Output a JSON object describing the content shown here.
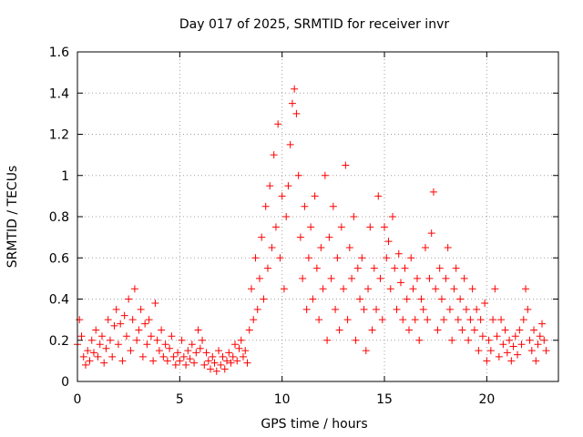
{
  "chart_data": {
    "type": "scatter",
    "title": "Day 017 of 2025, SRMTID for receiver invr",
    "xlabel": "GPS time / hours",
    "ylabel": "SRMTID / TECUs",
    "xlim": [
      0,
      23.5
    ],
    "ylim": [
      0,
      1.6
    ],
    "xticks": [
      0,
      5,
      10,
      15,
      20
    ],
    "xtick_labels": [
      "0",
      "5",
      "10",
      "15",
      "20"
    ],
    "yticks": [
      0,
      0.2,
      0.4,
      0.6,
      0.8,
      1.0,
      1.2,
      1.4,
      1.6
    ],
    "ytick_labels": [
      "0",
      "0.2",
      "0.4",
      "0.6",
      "0.8",
      "1",
      "1.2",
      "1.4",
      "1.6"
    ],
    "grid": true,
    "marker": "plus",
    "color": "#ff0000",
    "series": [
      {
        "name": "SRMTID",
        "points": [
          [
            0.0,
            0.18
          ],
          [
            0.1,
            0.3
          ],
          [
            0.2,
            0.22
          ],
          [
            0.3,
            0.12
          ],
          [
            0.4,
            0.08
          ],
          [
            0.5,
            0.15
          ],
          [
            0.6,
            0.1
          ],
          [
            0.7,
            0.2
          ],
          [
            0.8,
            0.14
          ],
          [
            0.9,
            0.25
          ],
          [
            1.0,
            0.12
          ],
          [
            1.1,
            0.18
          ],
          [
            1.2,
            0.22
          ],
          [
            1.3,
            0.09
          ],
          [
            1.4,
            0.16
          ],
          [
            1.5,
            0.3
          ],
          [
            1.6,
            0.2
          ],
          [
            1.7,
            0.12
          ],
          [
            1.8,
            0.27
          ],
          [
            1.9,
            0.35
          ],
          [
            2.0,
            0.18
          ],
          [
            2.1,
            0.28
          ],
          [
            2.2,
            0.1
          ],
          [
            2.3,
            0.32
          ],
          [
            2.4,
            0.22
          ],
          [
            2.5,
            0.4
          ],
          [
            2.6,
            0.15
          ],
          [
            2.7,
            0.3
          ],
          [
            2.8,
            0.45
          ],
          [
            2.9,
            0.2
          ],
          [
            3.0,
            0.25
          ],
          [
            3.1,
            0.35
          ],
          [
            3.2,
            0.12
          ],
          [
            3.3,
            0.28
          ],
          [
            3.4,
            0.18
          ],
          [
            3.5,
            0.3
          ],
          [
            3.6,
            0.22
          ],
          [
            3.7,
            0.1
          ],
          [
            3.8,
            0.38
          ],
          [
            3.9,
            0.2
          ],
          [
            4.0,
            0.15
          ],
          [
            4.1,
            0.25
          ],
          [
            4.2,
            0.12
          ],
          [
            4.3,
            0.18
          ],
          [
            4.4,
            0.1
          ],
          [
            4.5,
            0.16
          ],
          [
            4.6,
            0.22
          ],
          [
            4.7,
            0.12
          ],
          [
            4.8,
            0.08
          ],
          [
            4.9,
            0.14
          ],
          [
            5.0,
            0.1
          ],
          [
            5.1,
            0.2
          ],
          [
            5.2,
            0.12
          ],
          [
            5.3,
            0.08
          ],
          [
            5.4,
            0.15
          ],
          [
            5.5,
            0.11
          ],
          [
            5.6,
            0.18
          ],
          [
            5.7,
            0.09
          ],
          [
            5.8,
            0.14
          ],
          [
            5.9,
            0.25
          ],
          [
            6.0,
            0.16
          ],
          [
            6.1,
            0.2
          ],
          [
            6.2,
            0.08
          ],
          [
            6.3,
            0.14
          ],
          [
            6.4,
            0.1
          ],
          [
            6.5,
            0.06
          ],
          [
            6.6,
            0.12
          ],
          [
            6.7,
            0.09
          ],
          [
            6.8,
            0.05
          ],
          [
            6.9,
            0.15
          ],
          [
            7.0,
            0.08
          ],
          [
            7.1,
            0.12
          ],
          [
            7.2,
            0.06
          ],
          [
            7.3,
            0.1
          ],
          [
            7.4,
            0.14
          ],
          [
            7.5,
            0.09
          ],
          [
            7.6,
            0.12
          ],
          [
            7.7,
            0.18
          ],
          [
            7.8,
            0.1
          ],
          [
            7.9,
            0.16
          ],
          [
            8.0,
            0.2
          ],
          [
            8.1,
            0.12
          ],
          [
            8.2,
            0.15
          ],
          [
            8.3,
            0.09
          ],
          [
            8.4,
            0.25
          ],
          [
            8.5,
            0.45
          ],
          [
            8.6,
            0.3
          ],
          [
            8.7,
            0.6
          ],
          [
            8.8,
            0.35
          ],
          [
            8.9,
            0.5
          ],
          [
            9.0,
            0.7
          ],
          [
            9.1,
            0.4
          ],
          [
            9.2,
            0.85
          ],
          [
            9.3,
            0.55
          ],
          [
            9.4,
            0.95
          ],
          [
            9.5,
            0.65
          ],
          [
            9.6,
            1.1
          ],
          [
            9.7,
            0.75
          ],
          [
            9.8,
            1.25
          ],
          [
            9.9,
            0.6
          ],
          [
            10.0,
            0.9
          ],
          [
            10.1,
            0.45
          ],
          [
            10.2,
            0.8
          ],
          [
            10.3,
            0.95
          ],
          [
            10.4,
            1.15
          ],
          [
            10.5,
            1.35
          ],
          [
            10.6,
            1.42
          ],
          [
            10.7,
            1.3
          ],
          [
            10.8,
            1.0
          ],
          [
            10.9,
            0.7
          ],
          [
            11.0,
            0.5
          ],
          [
            11.1,
            0.85
          ],
          [
            11.2,
            0.35
          ],
          [
            11.3,
            0.6
          ],
          [
            11.4,
            0.75
          ],
          [
            11.5,
            0.4
          ],
          [
            11.6,
            0.9
          ],
          [
            11.7,
            0.55
          ],
          [
            11.8,
            0.3
          ],
          [
            11.9,
            0.65
          ],
          [
            12.0,
            0.45
          ],
          [
            12.1,
            1.0
          ],
          [
            12.2,
            0.2
          ],
          [
            12.3,
            0.7
          ],
          [
            12.4,
            0.5
          ],
          [
            12.5,
            0.85
          ],
          [
            12.6,
            0.35
          ],
          [
            12.7,
            0.6
          ],
          [
            12.8,
            0.25
          ],
          [
            12.9,
            0.75
          ],
          [
            13.0,
            0.45
          ],
          [
            13.1,
            1.05
          ],
          [
            13.2,
            0.3
          ],
          [
            13.3,
            0.65
          ],
          [
            13.4,
            0.5
          ],
          [
            13.5,
            0.8
          ],
          [
            13.6,
            0.2
          ],
          [
            13.7,
            0.55
          ],
          [
            13.8,
            0.4
          ],
          [
            13.9,
            0.6
          ],
          [
            14.0,
            0.35
          ],
          [
            14.1,
            0.15
          ],
          [
            14.2,
            0.45
          ],
          [
            14.3,
            0.75
          ],
          [
            14.4,
            0.25
          ],
          [
            14.5,
            0.55
          ],
          [
            14.6,
            0.35
          ],
          [
            14.7,
            0.9
          ],
          [
            14.8,
            0.5
          ],
          [
            14.9,
            0.3
          ],
          [
            15.0,
            0.75
          ],
          [
            15.1,
            0.6
          ],
          [
            15.2,
            0.68
          ],
          [
            15.3,
            0.45
          ],
          [
            15.4,
            0.8
          ],
          [
            15.5,
            0.55
          ],
          [
            15.6,
            0.35
          ],
          [
            15.7,
            0.62
          ],
          [
            15.8,
            0.48
          ],
          [
            15.9,
            0.3
          ],
          [
            16.0,
            0.55
          ],
          [
            16.1,
            0.4
          ],
          [
            16.2,
            0.25
          ],
          [
            16.3,
            0.6
          ],
          [
            16.4,
            0.45
          ],
          [
            16.5,
            0.3
          ],
          [
            16.6,
            0.5
          ],
          [
            16.7,
            0.2
          ],
          [
            16.8,
            0.4
          ],
          [
            16.9,
            0.35
          ],
          [
            17.0,
            0.65
          ],
          [
            17.1,
            0.3
          ],
          [
            17.2,
            0.5
          ],
          [
            17.3,
            0.72
          ],
          [
            17.4,
            0.92
          ],
          [
            17.5,
            0.45
          ],
          [
            17.6,
            0.25
          ],
          [
            17.7,
            0.55
          ],
          [
            17.8,
            0.4
          ],
          [
            17.9,
            0.3
          ],
          [
            18.0,
            0.5
          ],
          [
            18.1,
            0.65
          ],
          [
            18.2,
            0.35
          ],
          [
            18.3,
            0.2
          ],
          [
            18.4,
            0.45
          ],
          [
            18.5,
            0.55
          ],
          [
            18.6,
            0.3
          ],
          [
            18.7,
            0.4
          ],
          [
            18.8,
            0.25
          ],
          [
            18.9,
            0.5
          ],
          [
            19.0,
            0.35
          ],
          [
            19.1,
            0.2
          ],
          [
            19.2,
            0.3
          ],
          [
            19.3,
            0.45
          ],
          [
            19.4,
            0.25
          ],
          [
            19.5,
            0.35
          ],
          [
            19.6,
            0.15
          ],
          [
            19.7,
            0.3
          ],
          [
            19.8,
            0.22
          ],
          [
            19.9,
            0.38
          ],
          [
            20.0,
            0.1
          ],
          [
            20.1,
            0.2
          ],
          [
            20.2,
            0.15
          ],
          [
            20.3,
            0.3
          ],
          [
            20.4,
            0.45
          ],
          [
            20.5,
            0.22
          ],
          [
            20.6,
            0.12
          ],
          [
            20.7,
            0.3
          ],
          [
            20.8,
            0.18
          ],
          [
            20.9,
            0.25
          ],
          [
            21.0,
            0.14
          ],
          [
            21.1,
            0.2
          ],
          [
            21.2,
            0.1
          ],
          [
            21.3,
            0.17
          ],
          [
            21.4,
            0.22
          ],
          [
            21.5,
            0.13
          ],
          [
            21.6,
            0.25
          ],
          [
            21.7,
            0.18
          ],
          [
            21.8,
            0.3
          ],
          [
            21.9,
            0.45
          ],
          [
            22.0,
            0.35
          ],
          [
            22.1,
            0.2
          ],
          [
            22.2,
            0.15
          ],
          [
            22.3,
            0.25
          ],
          [
            22.4,
            0.1
          ],
          [
            22.5,
            0.18
          ],
          [
            22.6,
            0.22
          ],
          [
            22.7,
            0.28
          ],
          [
            22.8,
            0.2
          ],
          [
            22.9,
            0.15
          ]
        ]
      }
    ]
  }
}
